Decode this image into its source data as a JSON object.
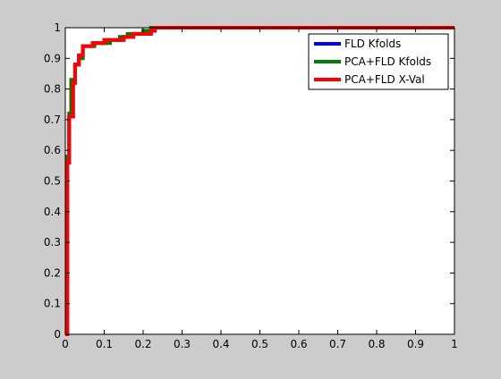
{
  "figure": {
    "background": "#cccccc",
    "axes_background": "#ffffff"
  },
  "chart_data": {
    "type": "line",
    "title": "",
    "xlabel": "",
    "ylabel": "",
    "xlim": [
      0,
      1
    ],
    "ylim": [
      0,
      1
    ],
    "grid": false,
    "legend_position": "top-right",
    "x_ticks": [
      "0",
      "0.1",
      "0.2",
      "0.3",
      "0.4",
      "0.5",
      "0.6",
      "0.7",
      "0.8",
      "0.9",
      "1"
    ],
    "y_ticks": [
      "0",
      "0.1",
      "0.2",
      "0.3",
      "0.4",
      "0.5",
      "0.6",
      "0.7",
      "0.8",
      "0.9",
      "1"
    ],
    "series": [
      {
        "name": "FLD Kfolds",
        "color": "#0000ff",
        "x": [
          0,
          0.005,
          0.005,
          0.01,
          0.01,
          0.02,
          0.02,
          0.025,
          0.025,
          0.035,
          0.035,
          0.045,
          0.045,
          0.07,
          0.07,
          0.1,
          0.1,
          0.15,
          0.15,
          0.175,
          0.175,
          0.22,
          0.22,
          0.23,
          0.23,
          1
        ],
        "y": [
          0,
          0,
          0.56,
          0.56,
          0.71,
          0.71,
          0.82,
          0.82,
          0.88,
          0.88,
          0.91,
          0.91,
          0.94,
          0.94,
          0.95,
          0.95,
          0.96,
          0.96,
          0.97,
          0.97,
          0.98,
          0.98,
          0.99,
          0.99,
          1,
          1
        ]
      },
      {
        "name": "PCA+FLD Kfolds",
        "color": "#007f00",
        "x": [
          0,
          0.005,
          0.005,
          0.01,
          0.01,
          0.015,
          0.015,
          0.025,
          0.025,
          0.035,
          0.035,
          0.045,
          0.045,
          0.075,
          0.075,
          0.115,
          0.115,
          0.14,
          0.14,
          0.16,
          0.16,
          0.2,
          0.2,
          0.22,
          0.22,
          1
        ],
        "y": [
          0,
          0,
          0.58,
          0.58,
          0.72,
          0.72,
          0.83,
          0.83,
          0.88,
          0.88,
          0.9,
          0.9,
          0.94,
          0.94,
          0.95,
          0.95,
          0.96,
          0.96,
          0.97,
          0.97,
          0.98,
          0.98,
          0.99,
          0.99,
          1,
          1
        ]
      },
      {
        "name": "PCA+FLD X-Val",
        "color": "#ff0000",
        "x": [
          0,
          0.005,
          0.005,
          0.01,
          0.01,
          0.02,
          0.02,
          0.025,
          0.025,
          0.035,
          0.035,
          0.045,
          0.045,
          0.07,
          0.07,
          0.1,
          0.1,
          0.15,
          0.15,
          0.175,
          0.175,
          0.22,
          0.22,
          0.23,
          0.23,
          1
        ],
        "y": [
          0,
          0,
          0.56,
          0.56,
          0.71,
          0.71,
          0.82,
          0.82,
          0.88,
          0.88,
          0.91,
          0.91,
          0.94,
          0.94,
          0.95,
          0.95,
          0.96,
          0.96,
          0.97,
          0.97,
          0.98,
          0.98,
          0.99,
          0.99,
          1,
          1
        ]
      }
    ]
  }
}
